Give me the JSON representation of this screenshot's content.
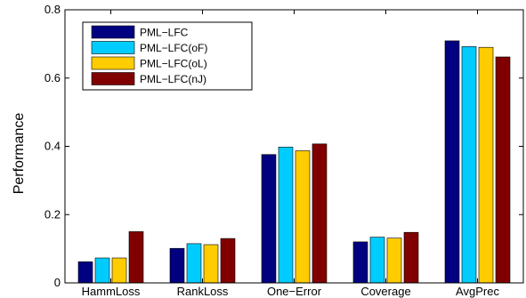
{
  "chart_data": {
    "type": "bar",
    "categories": [
      "HammLoss",
      "RankLoss",
      "One−Error",
      "Coverage",
      "AvgPrec"
    ],
    "series": [
      {
        "name": "PML−LFC",
        "color": "#000080",
        "values": [
          0.062,
          0.101,
          0.376,
          0.12,
          0.709
        ]
      },
      {
        "name": "PML−LFC(oF)",
        "color": "#00ccff",
        "values": [
          0.073,
          0.115,
          0.398,
          0.134,
          0.692
        ]
      },
      {
        "name": "PML−LFC(oL)",
        "color": "#ffcc00",
        "values": [
          0.073,
          0.112,
          0.387,
          0.131,
          0.69
        ]
      },
      {
        "name": "PML−LFC(nJ)",
        "color": "#800000",
        "values": [
          0.15,
          0.13,
          0.407,
          0.148,
          0.662
        ]
      }
    ],
    "xlabel": "",
    "ylabel": "Performance",
    "ylim": [
      0,
      0.8
    ],
    "yticks": [
      "0",
      "0.2",
      "0.4",
      "0.6",
      "0.8"
    ],
    "grid": false,
    "legend_position": "top-left"
  }
}
